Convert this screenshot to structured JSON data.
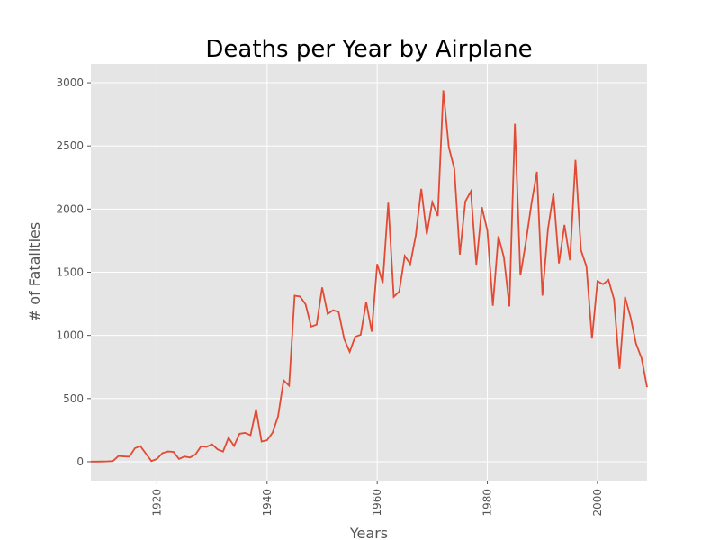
{
  "chart_data": {
    "type": "line",
    "title": "Deaths per Year by Airplane",
    "xlabel": "Years",
    "ylabel": "# of Fatalities",
    "xlim": [
      1908,
      2009
    ],
    "ylim": [
      -150,
      3150
    ],
    "x_ticks": [
      "1920",
      "1940",
      "1960",
      "1980",
      "2000"
    ],
    "y_ticks": [
      "0",
      "500",
      "1000",
      "1500",
      "2000",
      "2500",
      "3000"
    ],
    "grid": true,
    "legend": "none",
    "background": "#E5E5E5",
    "grid_color": "#FFFFFF",
    "line_color": "#E24A33",
    "series": [
      {
        "x": [
          1908,
          1909,
          1910,
          1911,
          1912,
          1913,
          1914,
          1915,
          1916,
          1917,
          1918,
          1919,
          1920,
          1921,
          1922,
          1923,
          1924,
          1925,
          1926,
          1927,
          1928,
          1929,
          1930,
          1931,
          1932,
          1933,
          1934,
          1935,
          1936,
          1937,
          1938,
          1939,
          1940,
          1941,
          1942,
          1943,
          1944,
          1945,
          1946,
          1947,
          1948,
          1949,
          1950,
          1951,
          1952,
          1953,
          1954,
          1955,
          1956,
          1957,
          1958,
          1959,
          1960,
          1961,
          1962,
          1963,
          1964,
          1965,
          1966,
          1967,
          1968,
          1969,
          1970,
          1971,
          1972,
          1973,
          1974,
          1975,
          1976,
          1977,
          1978,
          1979,
          1980,
          1981,
          1982,
          1983,
          1984,
          1985,
          1986,
          1987,
          1988,
          1989,
          1990,
          1991,
          1992,
          1993,
          1994,
          1995,
          1996,
          1997,
          1998,
          1999,
          2000,
          2001,
          2002,
          2003,
          2004,
          2005,
          2006,
          2007,
          2008,
          2009
        ],
        "values": [
          1,
          1,
          2,
          3,
          5,
          45,
          42,
          40,
          107,
          123,
          64,
          5,
          22,
          68,
          81,
          78,
          22,
          41,
          33,
          58,
          122,
          118,
          138,
          98,
          80,
          190,
          125,
          222,
          228,
          210,
          415,
          160,
          170,
          230,
          360,
          645,
          602,
          1315,
          1308,
          1245,
          1070,
          1085,
          1380,
          1170,
          1200,
          1185,
          972,
          870,
          990,
          1005,
          1265,
          1030,
          1565,
          1415,
          2050,
          1305,
          1348,
          1630,
          1565,
          1790,
          2160,
          1800,
          2055,
          1945,
          2940,
          2490,
          2320,
          1640,
          2060,
          2140,
          1560,
          2015,
          1830,
          1235,
          1785,
          1620,
          1230,
          2675,
          1475,
          1740,
          2040,
          2295,
          1315,
          1840,
          2125,
          1570,
          1875,
          1595,
          2390,
          1675,
          1545,
          975,
          1430,
          1405,
          1440,
          1285,
          735,
          1305,
          1145,
          935,
          820,
          590
        ]
      }
    ]
  }
}
